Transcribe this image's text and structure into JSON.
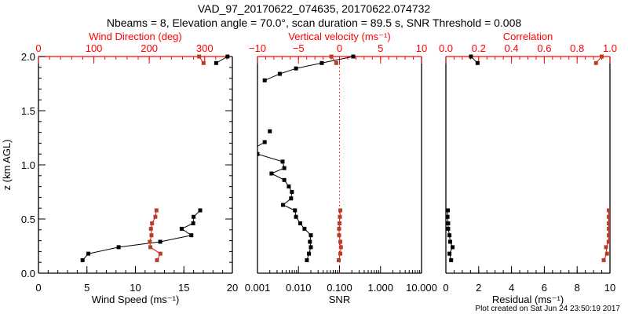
{
  "title": "VAD_97_20170622_074635, 20170622.074732",
  "subtitle": "Nbeams = 8, Elevation angle = 70.0°, scan duration = 89.5 s, SNR Threshold = 0.008",
  "footer": "Plot created on Sat Jun 24 23:50:19 2017",
  "colors": {
    "axis_primary": "#000000",
    "axis_secondary": "#ff0000",
    "marker_secondary": "#b4402c",
    "line_secondary": "#ff0000"
  },
  "chart_data": [
    {
      "type": "line",
      "ylabel": "z (km AGL)",
      "ylim": [
        0,
        2
      ],
      "yticks": [
        0,
        0.5,
        1,
        1.5,
        2
      ],
      "ytick_labels": [
        "0.0",
        "0.5",
        "1.0",
        "1.5",
        "2.0"
      ],
      "yminor": 0.1,
      "bottom_axis": {
        "label": "Wind Speed (ms⁻¹)",
        "scale": "linear",
        "range": [
          0,
          20
        ],
        "ticks": [
          0,
          5,
          10,
          15,
          20
        ],
        "tick_labels": [
          "0",
          "5",
          "10",
          "15",
          "20"
        ],
        "minor": 1
      },
      "top_axis": {
        "label": "Wind Direction (deg)",
        "scale": "linear",
        "range": [
          0,
          350
        ],
        "ticks": [
          0,
          100,
          200,
          300
        ],
        "tick_labels": [
          "0",
          "100",
          "200",
          "300"
        ],
        "minor": 20
      },
      "series": [
        {
          "name": "Wind Speed",
          "axis": "bottom",
          "color": "#000000",
          "points": [
            [
              0.12,
              4.55
            ],
            [
              0.18,
              5.15
            ],
            [
              0.24,
              8.27
            ],
            [
              0.29,
              12.56
            ],
            [
              0.35,
              15.77
            ],
            [
              0.41,
              14.77
            ],
            [
              0.46,
              15.96
            ],
            [
              0.52,
              16.0
            ],
            [
              0.58,
              16.68
            ],
            null,
            [
              1.94,
              18.33
            ],
            [
              2.0,
              19.5
            ]
          ]
        },
        {
          "name": "Wind Direction",
          "axis": "top",
          "color": "#ff0000",
          "points": [
            [
              0.12,
              214
            ],
            [
              0.18,
              220
            ],
            [
              0.24,
              202
            ],
            [
              0.29,
              201
            ],
            [
              0.35,
              204
            ],
            [
              0.41,
              203
            ],
            [
              0.46,
              205
            ],
            [
              0.52,
              211
            ],
            [
              0.58,
              213
            ],
            null,
            [
              1.94,
              298
            ],
            [
              2.0,
              290
            ]
          ]
        }
      ]
    },
    {
      "type": "line",
      "ylim": [
        0,
        2
      ],
      "bottom_axis": {
        "label": "SNR",
        "scale": "log",
        "range": [
          0.001,
          10
        ],
        "ticks": [
          0.001,
          0.01,
          0.1,
          1,
          10
        ],
        "tick_labels": [
          "0.001",
          "0.010",
          "0.100",
          "1.000",
          "10.000"
        ]
      },
      "top_axis": {
        "label": "Vertical velocity (ms⁻¹)",
        "scale": "linear",
        "range": [
          -10,
          10
        ],
        "ticks": [
          -10,
          -5,
          0,
          5,
          10
        ],
        "tick_labels": [
          "−10",
          "−5",
          "0",
          "5",
          "10"
        ],
        "minor": 1
      },
      "reference_line": {
        "axis": "top",
        "value": 0,
        "style": "dotted"
      },
      "series": [
        {
          "name": "SNR",
          "axis": "bottom",
          "color": "#000000",
          "points": [
            [
              0.12,
              0.016
            ],
            [
              0.18,
              0.018
            ],
            [
              0.24,
              0.02
            ],
            [
              0.29,
              0.019
            ],
            [
              0.35,
              0.02
            ],
            [
              0.41,
              0.014
            ],
            [
              0.46,
              0.011
            ],
            [
              0.52,
              0.0087
            ],
            [
              0.58,
              0.0082
            ],
            [
              0.63,
              0.0042
            ],
            [
              0.69,
              0.0066
            ],
            [
              0.75,
              0.0069
            ],
            [
              0.8,
              0.0058
            ],
            [
              0.86,
              0.0045
            ],
            [
              0.92,
              0.0022
            ],
            [
              0.97,
              0.0045
            ],
            [
              1.03,
              0.0041
            ],
            [
              1.1,
              0.001
            ],
            [
              1.15,
              0.0008
            ],
            [
              1.21,
              0.0015
            ],
            null,
            [
              1.31,
              0.002
            ],
            null,
            [
              1.78,
              0.0015
            ],
            [
              1.84,
              0.0035
            ],
            [
              1.89,
              0.0087
            ],
            [
              1.94,
              0.037
            ],
            [
              2.0,
              0.216
            ]
          ]
        },
        {
          "name": "Vertical velocity",
          "axis": "top",
          "color": "#ff0000",
          "points": [
            [
              0.12,
              -0.1
            ],
            [
              0.18,
              0.1
            ],
            [
              0.24,
              0.17
            ],
            [
              0.29,
              0.1
            ],
            [
              0.35,
              -0.05
            ],
            [
              0.41,
              -0.05
            ],
            [
              0.46,
              0
            ],
            [
              0.52,
              0.05
            ],
            [
              0.58,
              0.1
            ],
            null,
            [
              1.94,
              -0.4
            ],
            [
              2.0,
              -1.0
            ]
          ]
        }
      ]
    },
    {
      "type": "line",
      "ylim": [
        0,
        2
      ],
      "bottom_axis": {
        "label": "Residual (ms⁻¹)",
        "scale": "linear",
        "range": [
          0,
          10
        ],
        "ticks": [
          0,
          2,
          4,
          6,
          8,
          10
        ],
        "tick_labels": [
          "0",
          "2",
          "4",
          "6",
          "8",
          "10"
        ],
        "minor": 0.5
      },
      "top_axis": {
        "label": "Correlation",
        "scale": "linear",
        "range": [
          0,
          1
        ],
        "ticks": [
          0,
          0.2,
          0.4,
          0.6,
          0.8,
          1.0
        ],
        "tick_labels": [
          "0.0",
          "0.2",
          "0.4",
          "0.6",
          "0.8",
          "1.0"
        ],
        "minor": 0.05
      },
      "series": [
        {
          "name": "Residual",
          "axis": "bottom",
          "color": "#000000",
          "points": [
            [
              0.12,
              0.32
            ],
            [
              0.18,
              0.22
            ],
            [
              0.24,
              0.41
            ],
            [
              0.29,
              0.26
            ],
            [
              0.35,
              0.22
            ],
            [
              0.41,
              0.14
            ],
            [
              0.46,
              0.14
            ],
            [
              0.52,
              0.1
            ],
            [
              0.58,
              0.12
            ],
            null,
            [
              1.94,
              1.93
            ],
            [
              2.0,
              1.53
            ]
          ]
        },
        {
          "name": "Correlation",
          "axis": "top",
          "color": "#ff0000",
          "points": [
            [
              0.12,
              0.962
            ],
            [
              0.18,
              0.982
            ],
            [
              0.24,
              0.976
            ],
            [
              0.29,
              0.992
            ],
            [
              0.35,
              0.993
            ],
            [
              0.41,
              0.993
            ],
            [
              0.46,
              0.993
            ],
            [
              0.52,
              0.993
            ],
            [
              0.58,
              0.993
            ],
            null,
            [
              1.94,
              0.915
            ],
            [
              2.0,
              0.95
            ]
          ]
        }
      ]
    }
  ]
}
